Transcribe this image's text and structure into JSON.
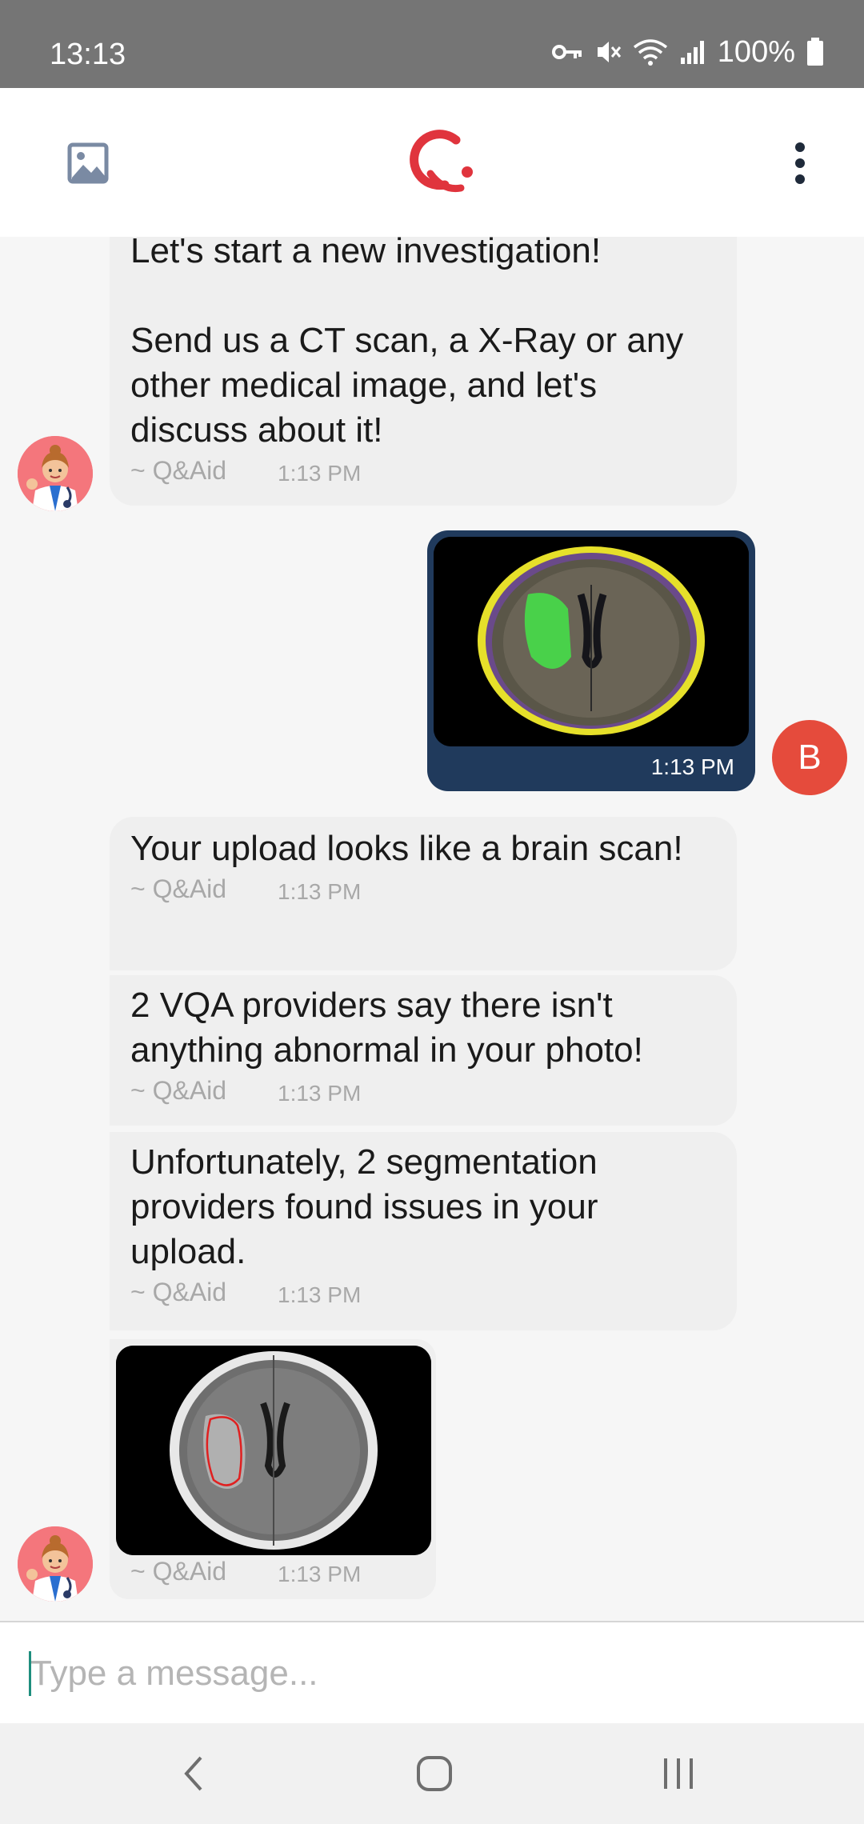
{
  "status_bar": {
    "time": "13:13",
    "battery": "100%"
  },
  "app_bar": {
    "left_icon": "image-gallery-icon",
    "logo": "qaid-logo",
    "right_icon": "more-vertical-icon"
  },
  "messages": {
    "m1": {
      "text": "Let's start a new investigation!\n\nSend us a CT scan, a X-Ray or any other medical image, and let's discuss about it!",
      "sender": "~ Q&Aid",
      "time": "1:13 PM"
    },
    "upload": {
      "time": "1:13 PM",
      "user_initial": "B"
    },
    "m2": {
      "text": "Your upload looks like a brain scan!",
      "sender": "~ Q&Aid",
      "time": "1:13 PM"
    },
    "m3": {
      "text": "2 VQA providers say there isn't anything abnormal in your photo!",
      "sender": "~ Q&Aid",
      "time": "1:13 PM"
    },
    "m4": {
      "text": "Unfortunately, 2 segmentation providers found issues in your upload.",
      "sender": "~ Q&Aid",
      "time": "1:13 PM"
    },
    "m5": {
      "sender": "~ Q&Aid",
      "time": "1:13 PM"
    }
  },
  "input": {
    "placeholder": "Type a message..."
  },
  "nav_bar": {
    "back": "back-icon",
    "home": "home-icon",
    "recents": "recents-icon"
  },
  "colors": {
    "accent": "#e0343d",
    "outgoing_bubble": "#203a5c",
    "incoming_bubble": "#efefef",
    "user_avatar": "#e54b3c"
  }
}
